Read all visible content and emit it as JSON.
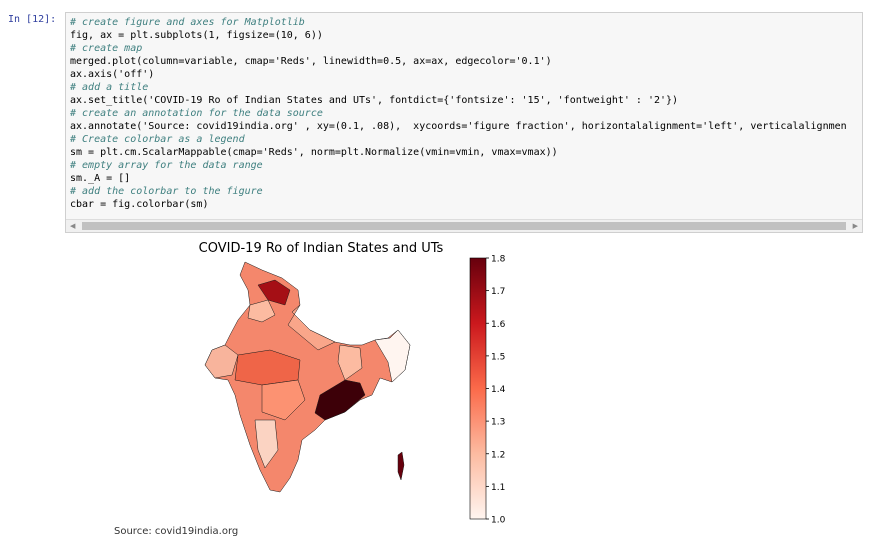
{
  "prompt": "In [12]:",
  "code_lines": [
    "# create figure and axes for Matplotlib",
    "fig, ax = plt.subplots(1, figsize=(10, 6))",
    "# create map",
    "merged.plot(column=variable, cmap='Reds', linewidth=0.5, ax=ax, edgecolor='0.1')",
    "ax.axis('off')",
    "# add a title",
    "ax.set_title('COVID-19 Ro of Indian States and UTs', fontdict={'fontsize': '15', 'fontweight' : '2'})",
    "# create an annotation for the data source",
    "ax.annotate('Source: covid19india.org' , xy=(0.1, .08),  xycoords='figure fraction', horizontalalignment='left', verticalalignmen",
    "# Create colorbar as a legend",
    "sm = plt.cm.ScalarMappable(cmap='Reds', norm=plt.Normalize(vmin=vmin, vmax=vmax))",
    "# empty array for the data range",
    "sm._A = []",
    "# add the colorbar to the figure",
    "cbar = fig.colorbar(sm)"
  ],
  "figure": {
    "title": "COVID-19 Ro of Indian States and UTs",
    "annotation": "Source: covid19india.org",
    "colorbar": {
      "lim": [
        1.0,
        1.8
      ],
      "ticks": [
        {
          "value": 1.0,
          "label": "1.0"
        },
        {
          "value": 1.1,
          "label": "1.1"
        },
        {
          "value": 1.2,
          "label": "1.2"
        },
        {
          "value": 1.3,
          "label": "1.3"
        },
        {
          "value": 1.4,
          "label": "1.4"
        },
        {
          "value": 1.5,
          "label": "1.5"
        },
        {
          "value": 1.6,
          "label": "1.6"
        },
        {
          "value": 1.7,
          "label": "1.7"
        },
        {
          "value": 1.8,
          "label": "1.8"
        }
      ]
    }
  }
}
